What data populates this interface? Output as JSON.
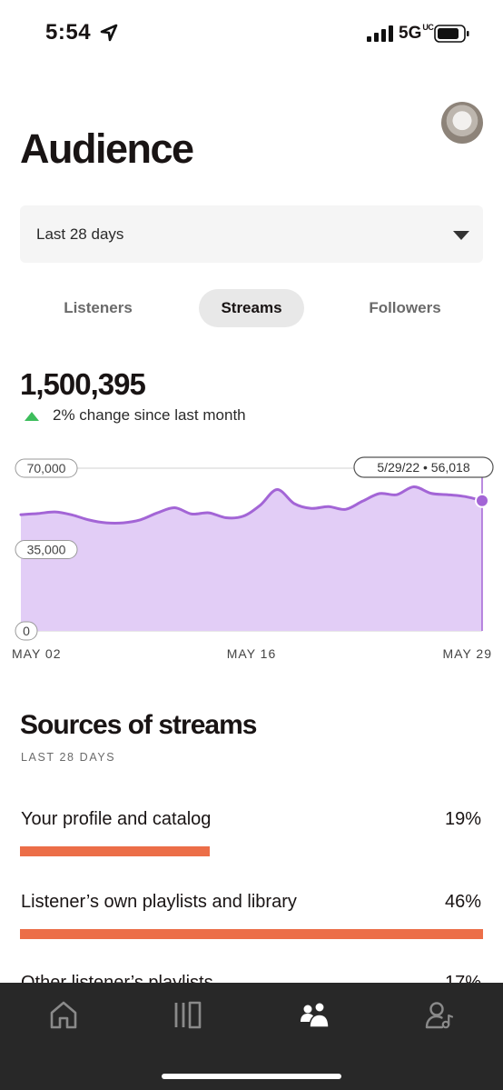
{
  "status_bar": {
    "time": "5:54",
    "network": "5G",
    "network_suffix": "UC"
  },
  "page": {
    "title": "Audience"
  },
  "range_select": {
    "value": "Last 28 days"
  },
  "tabs": [
    {
      "label": "Listeners",
      "active": false
    },
    {
      "label": "Streams",
      "active": true
    },
    {
      "label": "Followers",
      "active": false
    }
  ],
  "summary": {
    "total": "1,500,395",
    "change": "2% change since last month"
  },
  "chart_data": {
    "type": "area",
    "x": [
      "5/02/22",
      "5/03/22",
      "5/04/22",
      "5/05/22",
      "5/06/22",
      "5/07/22",
      "5/08/22",
      "5/09/22",
      "5/10/22",
      "5/11/22",
      "5/12/22",
      "5/13/22",
      "5/14/22",
      "5/15/22",
      "5/16/22",
      "5/17/22",
      "5/18/22",
      "5/19/22",
      "5/20/22",
      "5/21/22",
      "5/22/22",
      "5/23/22",
      "5/24/22",
      "5/25/22",
      "5/26/22",
      "5/27/22",
      "5/28/22",
      "5/29/22"
    ],
    "values": [
      50000,
      50500,
      51200,
      49900,
      47700,
      46500,
      46500,
      47800,
      50800,
      53000,
      50300,
      50800,
      48700,
      49300,
      54000,
      60800,
      54800,
      52700,
      53500,
      52300,
      55800,
      59100,
      58600,
      62000,
      59200,
      58600,
      57800,
      56018
    ],
    "x_ticks": [
      "MAY 02",
      "MAY 16",
      "MAY 29"
    ],
    "y_ticks": [
      "70,000",
      "35,000",
      "0"
    ],
    "ylim": [
      0,
      70000
    ],
    "highlight": {
      "label": "5/29/22 • 56,018",
      "value": 56018
    },
    "colors": {
      "line": "#a365d6",
      "fill": "#e2cdf6",
      "grid": "#d0d0d0"
    }
  },
  "sources": {
    "title": "Sources of streams",
    "subtitle": "LAST 28 DAYS",
    "items": [
      {
        "label": "Your profile and catalog",
        "pct": "19%",
        "value": 19,
        "bar_fraction": 0.41
      },
      {
        "label": "Listener’s own playlists and library",
        "pct": "46%",
        "value": 46,
        "bar_fraction": 1.0
      },
      {
        "label": "Other listener’s playlists",
        "pct": "17%",
        "value": 17,
        "bar_fraction": 0.37
      }
    ],
    "bar_color": "#ec6e48"
  },
  "nav": {
    "items": [
      "home-icon",
      "catalog-icon",
      "audience-icon",
      "profile-icon"
    ],
    "active": "audience-icon"
  }
}
